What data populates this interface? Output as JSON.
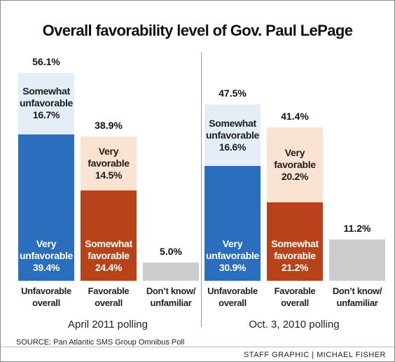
{
  "title": "Overall favorability level of Gov. Paul LePage",
  "source": "SOURCE: Pan Atlantic SMS Group Omnibus Poll",
  "credit": "STAFF GRAPHIC | MICHAEL FISHER",
  "chart_data": [
    {
      "type": "bar",
      "stacked": true,
      "subtitle": "April 2011 polling",
      "categories": [
        "Unfavorable\noverall",
        "Favorable\noverall",
        "Don’t know/\nunfamiliar"
      ],
      "ylim": [
        0,
        60
      ],
      "series": [
        {
          "name": "Very\nunfavorable",
          "color": "#2a6ebd",
          "values": [
            39.4,
            null,
            null
          ],
          "value_labels": [
            "39.4%",
            null,
            null
          ]
        },
        {
          "name": "Somewhat\nunfavorable",
          "color": "#e4eef9",
          "values": [
            16.7,
            null,
            null
          ],
          "value_labels": [
            "16.7%",
            null,
            null
          ]
        },
        {
          "name": "Somewhat\nfavorable",
          "color": "#b8431b",
          "values": [
            null,
            24.4,
            null
          ],
          "value_labels": [
            null,
            "24.4%",
            null
          ]
        },
        {
          "name": "Very\nfavorable",
          "color": "#fbe3d2",
          "values": [
            null,
            14.5,
            null
          ],
          "value_labels": [
            null,
            "14.5%",
            null
          ]
        },
        {
          "color": "#cbcccd",
          "values": [
            null,
            null,
            5.0
          ],
          "value_labels": [
            null,
            null,
            "5.0%"
          ]
        }
      ],
      "totals": [
        56.1,
        38.9,
        null
      ],
      "total_labels": [
        "56.1%",
        "38.9%",
        null
      ]
    },
    {
      "type": "bar",
      "stacked": true,
      "subtitle": "Oct. 3, 2010 polling",
      "categories": [
        "Unfavorable\noverall",
        "Favorable\noverall",
        "Don’t know/\nunfamiliar"
      ],
      "ylim": [
        0,
        60
      ],
      "series": [
        {
          "name": "Very\nunfavorable",
          "color": "#2a6ebd",
          "values": [
            30.9,
            null,
            null
          ],
          "value_labels": [
            "30.9%",
            null,
            null
          ]
        },
        {
          "name": "Somewhat\nunfavorable",
          "color": "#e4eef9",
          "values": [
            16.6,
            null,
            null
          ],
          "value_labels": [
            "16.6%",
            null,
            null
          ]
        },
        {
          "name": "Somewhat\nfavorable",
          "color": "#b8431b",
          "values": [
            null,
            21.2,
            null
          ],
          "value_labels": [
            null,
            "21.2%",
            null
          ]
        },
        {
          "name": "Very\nfavorable",
          "color": "#fbe3d2",
          "values": [
            null,
            20.2,
            null
          ],
          "value_labels": [
            null,
            "20.2%",
            null
          ]
        },
        {
          "color": "#cbcccd",
          "values": [
            null,
            null,
            11.2
          ],
          "value_labels": [
            null,
            null,
            "11.2%"
          ]
        }
      ],
      "totals": [
        47.5,
        41.4,
        null
      ],
      "total_labels": [
        "47.5%",
        "41.4%",
        null
      ]
    }
  ]
}
